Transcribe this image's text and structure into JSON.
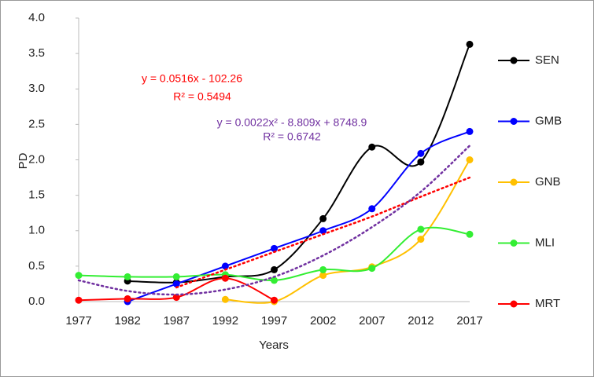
{
  "chart_data": {
    "type": "line",
    "x_label": "Years",
    "y_label": "PD",
    "categories": [
      "1977",
      "1982",
      "1987",
      "1992",
      "1997",
      "2002",
      "2007",
      "2012",
      "2017"
    ],
    "ylim": [
      0,
      4
    ],
    "yticks": [
      {
        "value": 0,
        "label": "0.0"
      },
      {
        "value": 0.5,
        "label": "0.5"
      },
      {
        "value": 1,
        "label": "1.0"
      },
      {
        "value": 1.5,
        "label": "1.5"
      },
      {
        "value": 2,
        "label": "2.0"
      },
      {
        "value": 2.5,
        "label": "2.5"
      },
      {
        "value": 3,
        "label": "3.0"
      },
      {
        "value": 3.5,
        "label": "3.5"
      },
      {
        "value": 4,
        "label": "4.0"
      }
    ],
    "series": [
      {
        "name": "SEN",
        "color": "#000000",
        "values": [
          null,
          0.29,
          0.27,
          0.35,
          0.45,
          1.17,
          2.18,
          1.97,
          3.63
        ]
      },
      {
        "name": "GMB",
        "color": "#0000ff",
        "values": [
          null,
          0.0,
          0.25,
          0.5,
          0.75,
          1.0,
          1.31,
          2.09,
          2.4
        ]
      },
      {
        "name": "GNB",
        "color": "#ffc000",
        "values": [
          null,
          null,
          null,
          0.03,
          0.0,
          0.37,
          0.49,
          0.88,
          2.0
        ]
      },
      {
        "name": "MLI",
        "color": "#33ee33",
        "values": [
          0.37,
          0.35,
          0.35,
          0.38,
          0.3,
          0.45,
          0.47,
          1.02,
          0.95
        ]
      },
      {
        "name": "MRT",
        "color": "#ff0000",
        "values": [
          0.02,
          0.04,
          0.06,
          0.33,
          0.02,
          null,
          null,
          null,
          null
        ]
      }
    ],
    "trendlines": [
      {
        "color": "#ff0000",
        "values": [
          null,
          null,
          0.2,
          0.45,
          0.7,
          0.95,
          1.2,
          1.48,
          1.75
        ],
        "equation": "y = 0.0516x - 102.26",
        "r_squared": "R² = 0.5494"
      },
      {
        "color": "#7030a0",
        "values": [
          0.3,
          0.15,
          0.1,
          0.17,
          0.35,
          0.65,
          1.05,
          1.55,
          2.2
        ],
        "equation": "y = 0.0022x² - 8.809x + 8748.9",
        "r_squared": "R² = 0.6742"
      }
    ]
  }
}
